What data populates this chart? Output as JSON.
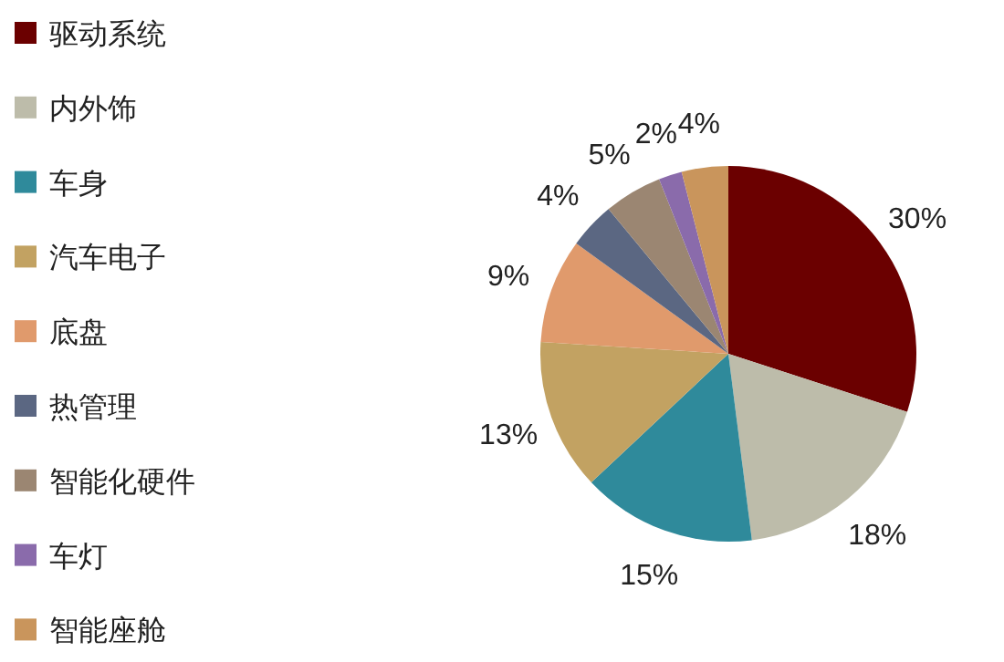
{
  "chart_data": {
    "type": "pie",
    "categories": [
      "驱动系统",
      "内外饰",
      "车身",
      "汽车电子",
      "底盘",
      "热管理",
      "智能化硬件",
      "车灯",
      "智能座舱"
    ],
    "values": [
      30,
      18,
      15,
      13,
      9,
      4,
      5,
      2,
      4
    ],
    "colors": [
      "#6b0000",
      "#bdbcaa",
      "#2f8a9b",
      "#c2a262",
      "#e09a6c",
      "#5b6782",
      "#9b8672",
      "#8a6bab",
      "#c9955c"
    ],
    "value_labels": [
      "30%",
      "18%",
      "15%",
      "13%",
      "9%",
      "4%",
      "5%",
      "2%",
      "4%"
    ],
    "legend": "left"
  }
}
